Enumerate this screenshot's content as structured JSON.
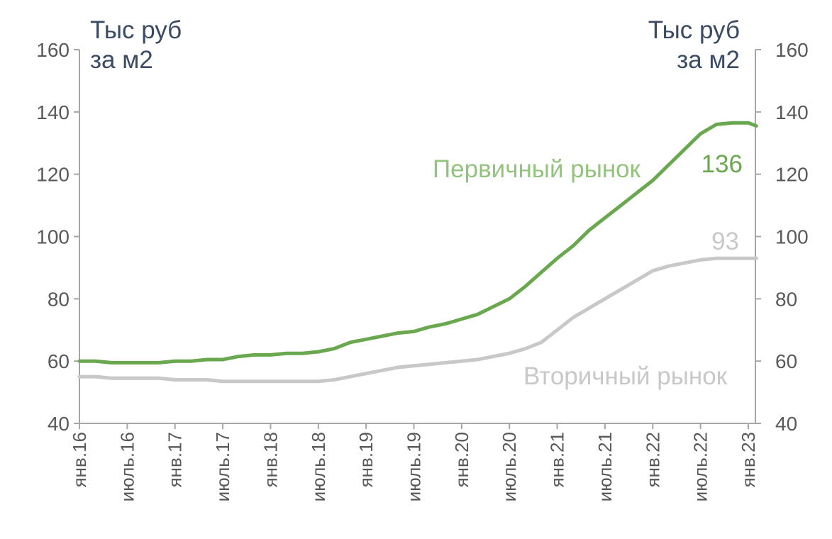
{
  "unit_left": [
    "Тыс руб",
    "за м2"
  ],
  "unit_right": [
    "Тыс руб",
    "за м2"
  ],
  "colors": {
    "primary": "#6aa84f",
    "primary_label": "#93c47d",
    "secondary": "#c8c8c8",
    "axis": "#a6a6a6",
    "text": "#595959"
  },
  "chart_data": {
    "type": "line",
    "ylim": [
      40,
      160
    ],
    "yticks": [
      40,
      60,
      80,
      100,
      120,
      140,
      160
    ],
    "xticks": [
      "янв.16",
      "июль.16",
      "янв.17",
      "июль.17",
      "янв.18",
      "июль.18",
      "янв.19",
      "июль.19",
      "янв.20",
      "июль.20",
      "янв.21",
      "июль.21",
      "янв.22",
      "июль.22",
      "янв.23"
    ],
    "grid": false,
    "series": [
      {
        "name": "Первичный рынок",
        "end_label": "136",
        "values": [
          [
            0,
            60
          ],
          [
            1,
            60
          ],
          [
            2,
            59.5
          ],
          [
            3,
            59.5
          ],
          [
            4,
            59.5
          ],
          [
            5,
            59.5
          ],
          [
            6,
            60
          ],
          [
            7,
            60
          ],
          [
            8,
            60.5
          ],
          [
            9,
            60.5
          ],
          [
            10,
            61.5
          ],
          [
            11,
            62
          ],
          [
            12,
            62
          ],
          [
            13,
            62.5
          ],
          [
            14,
            62.5
          ],
          [
            15,
            63
          ],
          [
            16,
            64
          ],
          [
            17,
            66
          ],
          [
            18,
            67
          ],
          [
            19,
            68
          ],
          [
            20,
            69
          ],
          [
            21,
            69.5
          ],
          [
            22,
            71
          ],
          [
            23,
            72
          ],
          [
            24,
            73.5
          ],
          [
            25,
            75
          ],
          [
            26,
            77.5
          ],
          [
            27,
            80
          ],
          [
            28,
            84
          ],
          [
            29,
            88.5
          ],
          [
            30,
            93
          ],
          [
            31,
            97
          ],
          [
            32,
            102
          ],
          [
            33,
            106
          ],
          [
            34,
            110
          ],
          [
            35,
            114
          ],
          [
            36,
            118
          ],
          [
            37,
            123
          ],
          [
            38,
            128
          ],
          [
            39,
            133
          ],
          [
            40,
            136
          ],
          [
            41,
            136.5
          ],
          [
            42,
            136.5
          ],
          [
            42.5,
            135.5
          ]
        ]
      },
      {
        "name": "Вторичный рынок",
        "end_label": "93",
        "values": [
          [
            0,
            55
          ],
          [
            1,
            55
          ],
          [
            2,
            54.5
          ],
          [
            3,
            54.5
          ],
          [
            4,
            54.5
          ],
          [
            5,
            54.5
          ],
          [
            6,
            54
          ],
          [
            7,
            54
          ],
          [
            8,
            54
          ],
          [
            9,
            53.5
          ],
          [
            10,
            53.5
          ],
          [
            11,
            53.5
          ],
          [
            12,
            53.5
          ],
          [
            13,
            53.5
          ],
          [
            14,
            53.5
          ],
          [
            15,
            53.5
          ],
          [
            16,
            54
          ],
          [
            17,
            55
          ],
          [
            18,
            56
          ],
          [
            19,
            57
          ],
          [
            20,
            58
          ],
          [
            21,
            58.5
          ],
          [
            22,
            59
          ],
          [
            23,
            59.5
          ],
          [
            24,
            60
          ],
          [
            25,
            60.5
          ],
          [
            26,
            61.5
          ],
          [
            27,
            62.5
          ],
          [
            28,
            64
          ],
          [
            29,
            66
          ],
          [
            30,
            70
          ],
          [
            31,
            74
          ],
          [
            32,
            77
          ],
          [
            33,
            80
          ],
          [
            34,
            83
          ],
          [
            35,
            86
          ],
          [
            36,
            89
          ],
          [
            37,
            90.5
          ],
          [
            38,
            91.5
          ],
          [
            39,
            92.5
          ],
          [
            40,
            93
          ],
          [
            41,
            93
          ],
          [
            42,
            93
          ],
          [
            42.5,
            93
          ]
        ]
      }
    ]
  }
}
